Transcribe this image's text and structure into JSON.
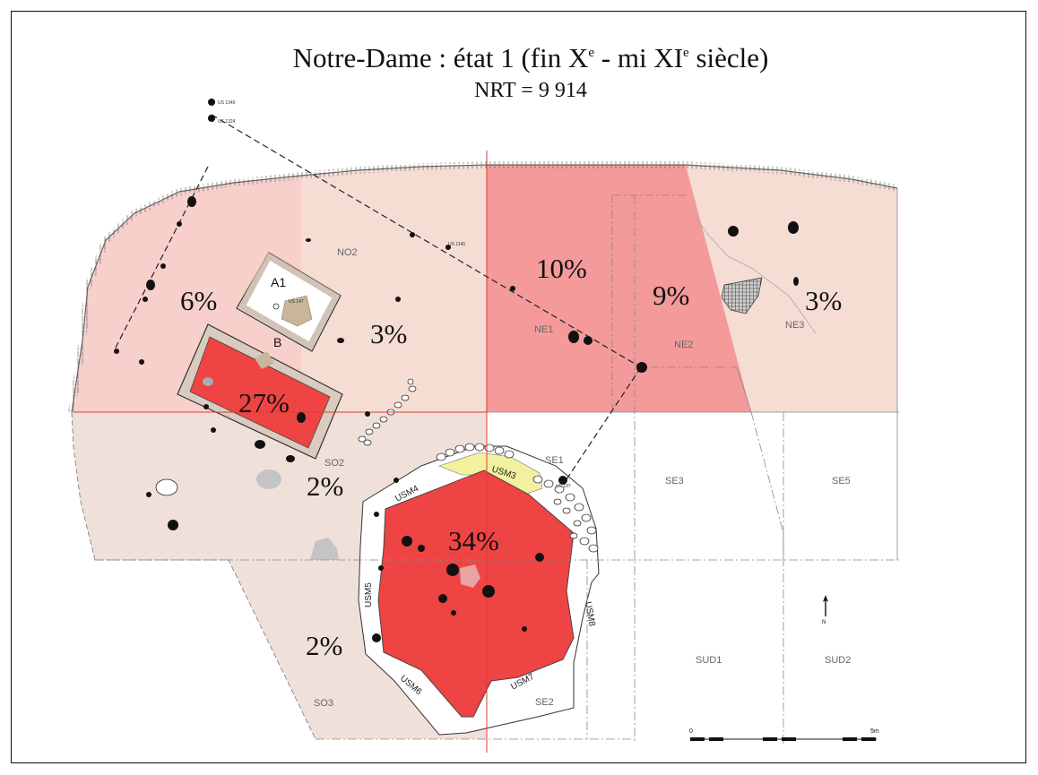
{
  "title": {
    "main_prefix": "Notre-Dame : état 1 (fin X",
    "sup1": "e",
    "main_middle": " - mi XI",
    "sup2": "e",
    "main_suffix": " siècle)",
    "subtitle": "NRT = 9 914"
  },
  "zones": [
    {
      "id": "NO2",
      "label": "NO2",
      "percent": "3%",
      "fill": "#f5ddd4"
    },
    {
      "id": "NO1",
      "label": "",
      "percent": "6%",
      "fill": "#f7cfcb"
    },
    {
      "id": "A1B",
      "label": "",
      "percent": "27%",
      "fill": "#ef4444"
    },
    {
      "id": "NE1",
      "label": "NE1",
      "percent": "10%",
      "fill": "#f49a9a"
    },
    {
      "id": "NE2",
      "label": "NE2",
      "percent": "9%",
      "fill": "#f49a9a"
    },
    {
      "id": "NE3",
      "label": "NE3",
      "percent": "3%",
      "fill": "#f5ddd4"
    },
    {
      "id": "SO2",
      "label": "SO2",
      "percent": "2%",
      "fill": "#f0e0da"
    },
    {
      "id": "SO3",
      "label": "SO3",
      "percent": "2%",
      "fill": "#f0e0da"
    },
    {
      "id": "USM",
      "label": "",
      "percent": "34%",
      "fill": "#ef4444"
    },
    {
      "id": "SE1",
      "label": "SE1",
      "percent": "",
      "fill": "#ffffff"
    },
    {
      "id": "SE2",
      "label": "SE2",
      "percent": "",
      "fill": "#ffffff"
    },
    {
      "id": "SE3",
      "label": "SE3",
      "percent": "",
      "fill": "#ffffff"
    },
    {
      "id": "SE5",
      "label": "SE5",
      "percent": "",
      "fill": "#ffffff"
    },
    {
      "id": "SUD1",
      "label": "SUD1",
      "percent": "",
      "fill": "#ffffff"
    },
    {
      "id": "SUD2",
      "label": "SUD2",
      "percent": "",
      "fill": "#ffffff"
    }
  ],
  "rooms": {
    "a1": "A1",
    "b": "B"
  },
  "walls": {
    "usm3": "USM3",
    "usm4": "USM4",
    "usm5": "USM5",
    "usm6": "USM6",
    "usm7": "USM7",
    "usm8": "USM8"
  },
  "scale_bar": {
    "start": "0",
    "end": "5m"
  },
  "north_arrow": {
    "label": "N"
  },
  "colors": {
    "accent_red": "#ef4444",
    "light_red": "#f49a9a",
    "pale_pink": "#f7cfcb",
    "beige": "#f0e0da",
    "guide_line": "#e53935"
  },
  "tiny_labels": [
    "US 1340",
    "US 1324",
    "US 197",
    "US 147",
    "US 1140"
  ]
}
